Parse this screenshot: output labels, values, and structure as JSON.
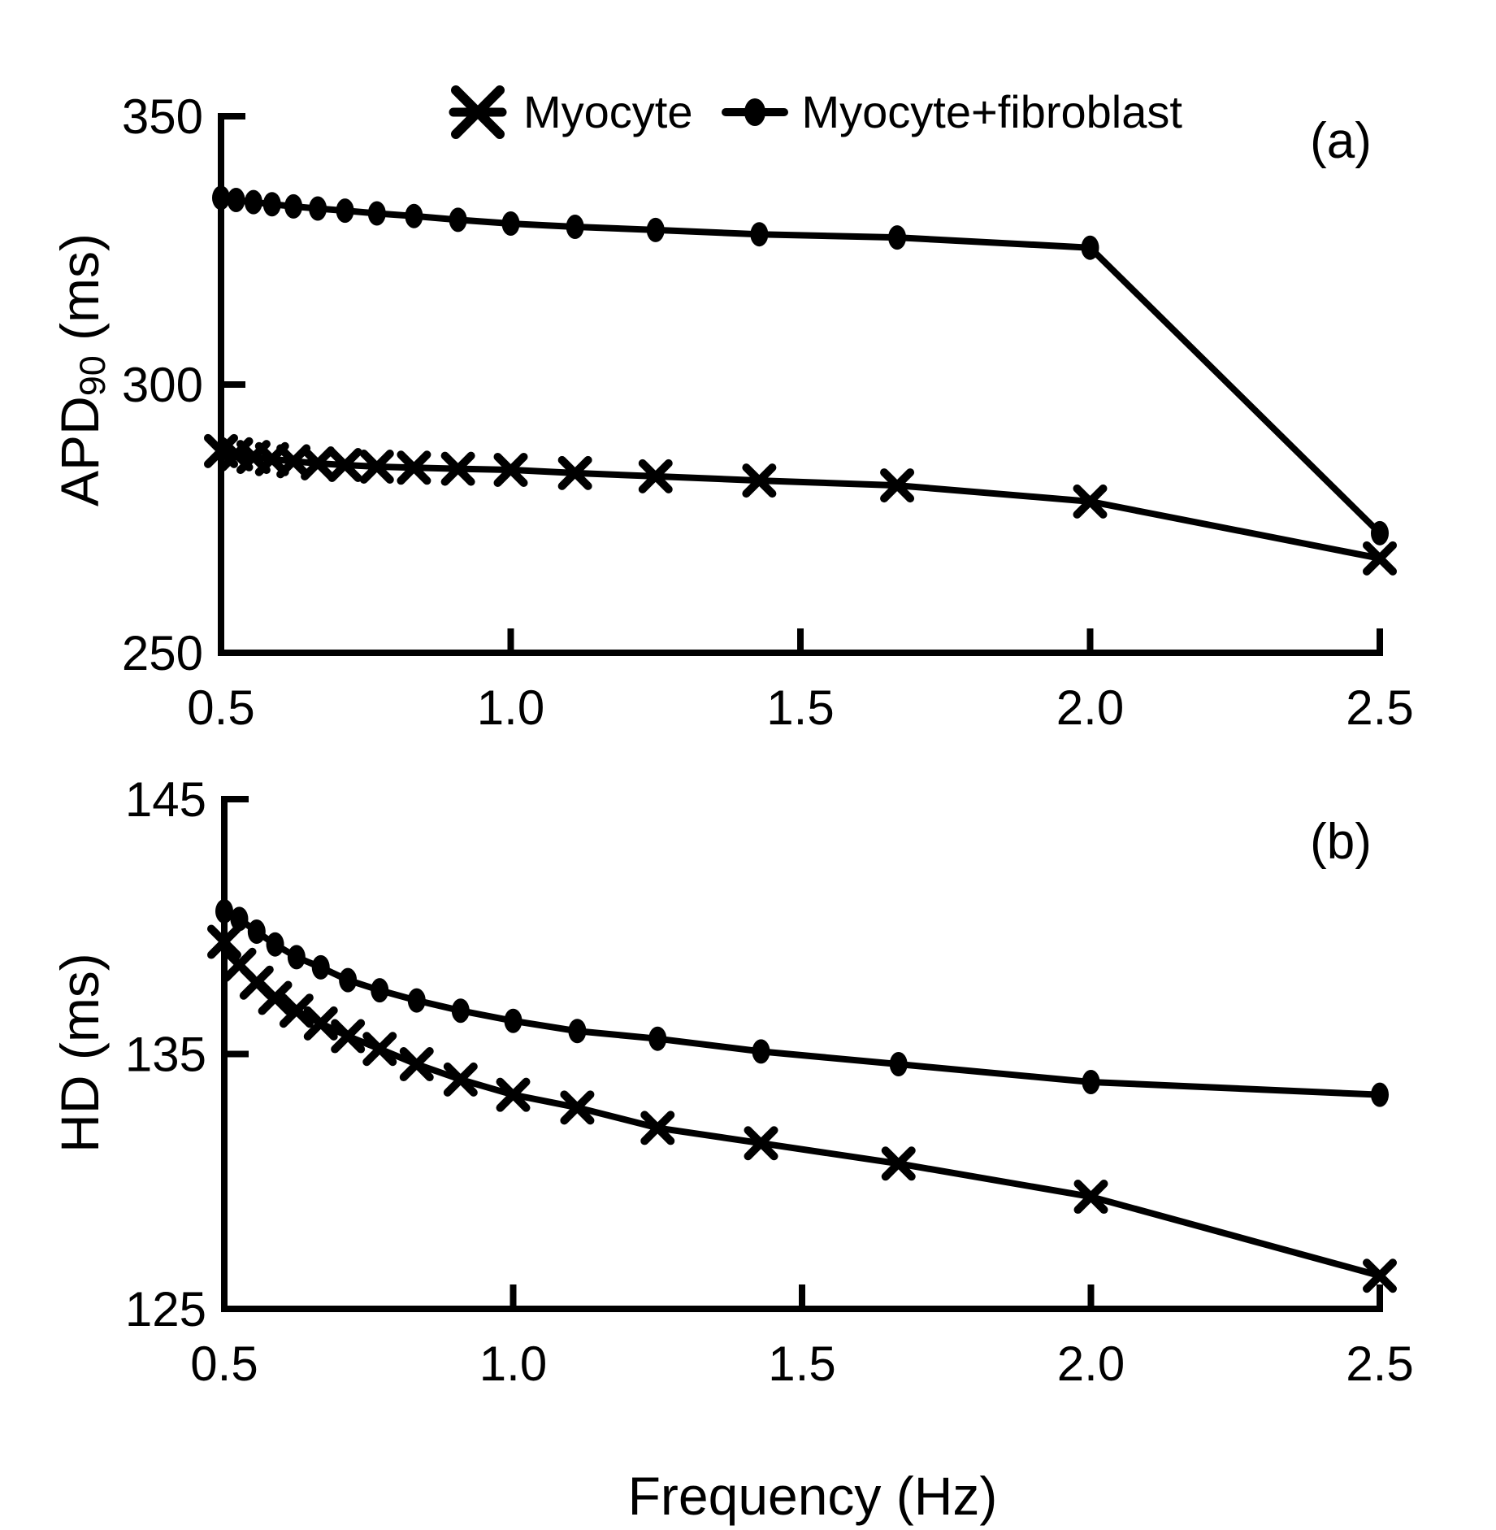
{
  "figure": {
    "xlabel": "Frequency (Hz)",
    "panel_a_label": "(a)",
    "panel_b_label": "(b)",
    "colors": {
      "foreground": "#000000",
      "background": "#ffffff"
    },
    "legend": [
      {
        "label": "Myocyte",
        "marker": "cross"
      },
      {
        "label": "Myocyte+fibroblast",
        "marker": "dot"
      }
    ]
  },
  "chart_data": [
    {
      "type": "line",
      "panel_label": "(a)",
      "title": "",
      "xlabel": "",
      "ylabel": "APD90 (ms)",
      "ylabel_parts": [
        {
          "text": "APD"
        },
        {
          "text": "90",
          "sub": true
        },
        {
          "text": " (ms)"
        }
      ],
      "xlim": [
        0.5,
        2.5
      ],
      "ylim": [
        250,
        350
      ],
      "xticks": [
        0.5,
        1.0,
        1.5,
        2.0,
        2.5
      ],
      "xtick_labels": [
        "0.5",
        "1.0",
        "1.5",
        "2.0",
        "2.5"
      ],
      "yticks": [
        250,
        300,
        350
      ],
      "ytick_labels": [
        "250",
        "300",
        "350"
      ],
      "grid": false,
      "legend_position": "top",
      "x": [
        0.5,
        0.526,
        0.556,
        0.588,
        0.625,
        0.667,
        0.714,
        0.769,
        0.833,
        0.909,
        1.0,
        1.111,
        1.25,
        1.429,
        1.667,
        2.0,
        2.5
      ],
      "series": [
        {
          "name": "Myocyte",
          "marker": "cross",
          "values": [
            287.6,
            287.0,
            286.5,
            286.1,
            285.7,
            285.3,
            285.0,
            284.7,
            284.5,
            284.3,
            284.1,
            283.5,
            282.9,
            282.1,
            281.2,
            278.2,
            267.6
          ]
        },
        {
          "name": "Myocyte+fibroblast",
          "marker": "dot",
          "values": [
            334.8,
            334.4,
            334.0,
            333.6,
            333.2,
            332.8,
            332.4,
            331.9,
            331.4,
            330.7,
            330.0,
            329.4,
            328.8,
            328.0,
            327.4,
            325.5,
            272.3
          ]
        }
      ]
    },
    {
      "type": "line",
      "panel_label": "(b)",
      "title": "",
      "xlabel": "Frequency (Hz)",
      "ylabel": "HD (ms)",
      "ylabel_parts": [
        {
          "text": "HD (ms)"
        }
      ],
      "xlim": [
        0.5,
        2.5
      ],
      "ylim": [
        125,
        145
      ],
      "xticks": [
        0.5,
        1.0,
        1.5,
        2.0,
        2.5
      ],
      "xtick_labels": [
        "0.5",
        "1.0",
        "1.5",
        "2.0",
        "2.5"
      ],
      "yticks": [
        125,
        135,
        145
      ],
      "ytick_labels": [
        "125",
        "135",
        "145"
      ],
      "grid": false,
      "x": [
        0.5,
        0.526,
        0.556,
        0.588,
        0.625,
        0.667,
        0.714,
        0.769,
        0.833,
        0.909,
        1.0,
        1.111,
        1.25,
        1.429,
        1.667,
        2.0,
        2.5
      ],
      "series": [
        {
          "name": "Myocyte",
          "marker": "cross",
          "values": [
            139.4,
            138.5,
            137.8,
            137.2,
            136.7,
            136.2,
            135.7,
            135.2,
            134.6,
            134.0,
            133.4,
            132.9,
            132.1,
            131.5,
            130.7,
            129.4,
            126.3
          ]
        },
        {
          "name": "Myocyte+fibroblast",
          "marker": "dot",
          "values": [
            140.6,
            140.3,
            139.8,
            139.3,
            138.8,
            138.4,
            137.9,
            137.5,
            137.1,
            136.7,
            136.3,
            135.9,
            135.6,
            135.1,
            134.6,
            133.9,
            133.4
          ]
        }
      ]
    }
  ]
}
